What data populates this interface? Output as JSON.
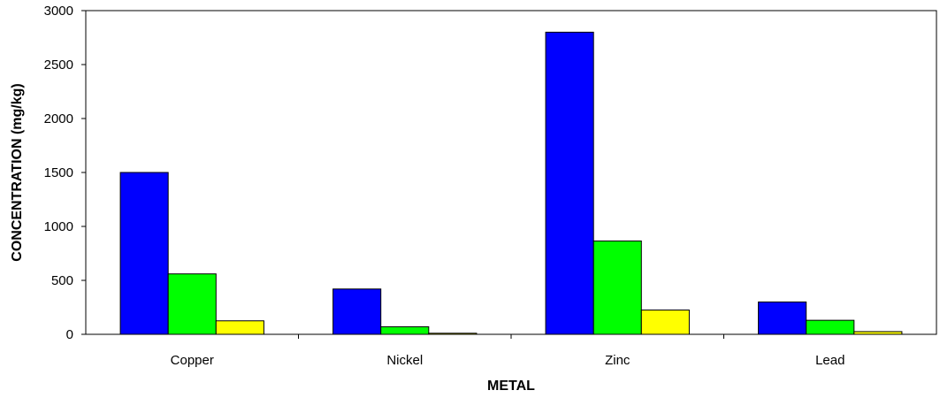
{
  "chart_data": {
    "type": "bar",
    "title": "",
    "xlabel": "METAL",
    "ylabel": "CONCENTRATION (mg/kg)",
    "categories": [
      "Copper",
      "Nickel",
      "Zinc",
      "Lead"
    ],
    "series": [
      {
        "color": "#0000ff",
        "values": [
          1500,
          420,
          2800,
          300
        ]
      },
      {
        "color": "#00ff00",
        "values": [
          560,
          70,
          865,
          130
        ]
      },
      {
        "color": "#ffff00",
        "values": [
          125,
          10,
          225,
          25
        ]
      }
    ],
    "ylim": [
      0,
      3000
    ],
    "yticks": [
      "0",
      "500",
      "1000",
      "1500",
      "2000",
      "2500",
      "3000"
    ],
    "grid": false,
    "legend": "none"
  }
}
